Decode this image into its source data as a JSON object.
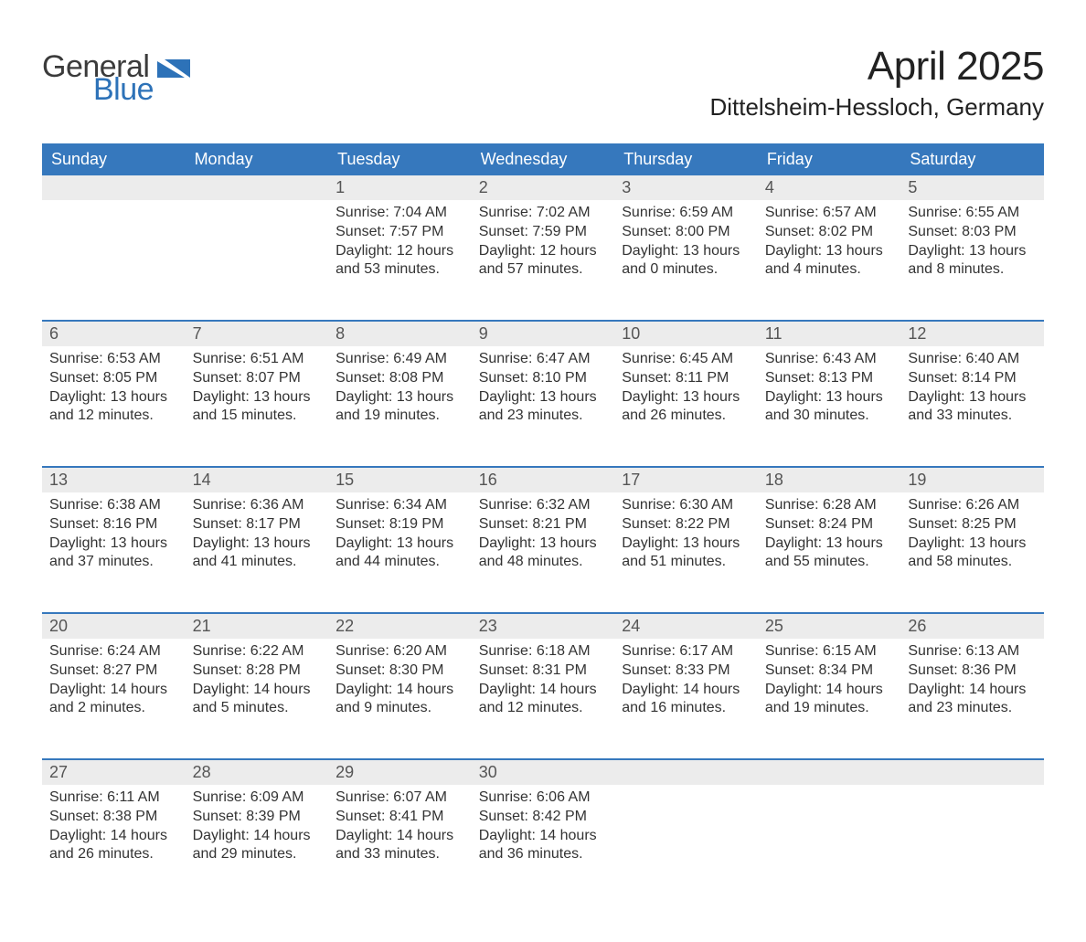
{
  "brand": {
    "word1": "General",
    "word2": "Blue",
    "word1_color": "#3b3b3b",
    "word2_color": "#2d72b8",
    "mark_color": "#2d72b8"
  },
  "title": "April 2025",
  "location": "Dittelsheim-Hessloch, Germany",
  "colors": {
    "header_bg": "#3678bd",
    "header_text": "#ffffff",
    "daynum_bg": "#ececec",
    "row_divider": "#3678bd",
    "body_text": "#333333",
    "page_bg": "#ffffff"
  },
  "day_headers": [
    "Sunday",
    "Monday",
    "Tuesday",
    "Wednesday",
    "Thursday",
    "Friday",
    "Saturday"
  ],
  "weeks": [
    [
      {
        "num": "",
        "lines": []
      },
      {
        "num": "",
        "lines": []
      },
      {
        "num": "1",
        "lines": [
          "Sunrise: 7:04 AM",
          "Sunset: 7:57 PM",
          "Daylight: 12 hours",
          "and 53 minutes."
        ]
      },
      {
        "num": "2",
        "lines": [
          "Sunrise: 7:02 AM",
          "Sunset: 7:59 PM",
          "Daylight: 12 hours",
          "and 57 minutes."
        ]
      },
      {
        "num": "3",
        "lines": [
          "Sunrise: 6:59 AM",
          "Sunset: 8:00 PM",
          "Daylight: 13 hours",
          "and 0 minutes."
        ]
      },
      {
        "num": "4",
        "lines": [
          "Sunrise: 6:57 AM",
          "Sunset: 8:02 PM",
          "Daylight: 13 hours",
          "and 4 minutes."
        ]
      },
      {
        "num": "5",
        "lines": [
          "Sunrise: 6:55 AM",
          "Sunset: 8:03 PM",
          "Daylight: 13 hours",
          "and 8 minutes."
        ]
      }
    ],
    [
      {
        "num": "6",
        "lines": [
          "Sunrise: 6:53 AM",
          "Sunset: 8:05 PM",
          "Daylight: 13 hours",
          "and 12 minutes."
        ]
      },
      {
        "num": "7",
        "lines": [
          "Sunrise: 6:51 AM",
          "Sunset: 8:07 PM",
          "Daylight: 13 hours",
          "and 15 minutes."
        ]
      },
      {
        "num": "8",
        "lines": [
          "Sunrise: 6:49 AM",
          "Sunset: 8:08 PM",
          "Daylight: 13 hours",
          "and 19 minutes."
        ]
      },
      {
        "num": "9",
        "lines": [
          "Sunrise: 6:47 AM",
          "Sunset: 8:10 PM",
          "Daylight: 13 hours",
          "and 23 minutes."
        ]
      },
      {
        "num": "10",
        "lines": [
          "Sunrise: 6:45 AM",
          "Sunset: 8:11 PM",
          "Daylight: 13 hours",
          "and 26 minutes."
        ]
      },
      {
        "num": "11",
        "lines": [
          "Sunrise: 6:43 AM",
          "Sunset: 8:13 PM",
          "Daylight: 13 hours",
          "and 30 minutes."
        ]
      },
      {
        "num": "12",
        "lines": [
          "Sunrise: 6:40 AM",
          "Sunset: 8:14 PM",
          "Daylight: 13 hours",
          "and 33 minutes."
        ]
      }
    ],
    [
      {
        "num": "13",
        "lines": [
          "Sunrise: 6:38 AM",
          "Sunset: 8:16 PM",
          "Daylight: 13 hours",
          "and 37 minutes."
        ]
      },
      {
        "num": "14",
        "lines": [
          "Sunrise: 6:36 AM",
          "Sunset: 8:17 PM",
          "Daylight: 13 hours",
          "and 41 minutes."
        ]
      },
      {
        "num": "15",
        "lines": [
          "Sunrise: 6:34 AM",
          "Sunset: 8:19 PM",
          "Daylight: 13 hours",
          "and 44 minutes."
        ]
      },
      {
        "num": "16",
        "lines": [
          "Sunrise: 6:32 AM",
          "Sunset: 8:21 PM",
          "Daylight: 13 hours",
          "and 48 minutes."
        ]
      },
      {
        "num": "17",
        "lines": [
          "Sunrise: 6:30 AM",
          "Sunset: 8:22 PM",
          "Daylight: 13 hours",
          "and 51 minutes."
        ]
      },
      {
        "num": "18",
        "lines": [
          "Sunrise: 6:28 AM",
          "Sunset: 8:24 PM",
          "Daylight: 13 hours",
          "and 55 minutes."
        ]
      },
      {
        "num": "19",
        "lines": [
          "Sunrise: 6:26 AM",
          "Sunset: 8:25 PM",
          "Daylight: 13 hours",
          "and 58 minutes."
        ]
      }
    ],
    [
      {
        "num": "20",
        "lines": [
          "Sunrise: 6:24 AM",
          "Sunset: 8:27 PM",
          "Daylight: 14 hours",
          "and 2 minutes."
        ]
      },
      {
        "num": "21",
        "lines": [
          "Sunrise: 6:22 AM",
          "Sunset: 8:28 PM",
          "Daylight: 14 hours",
          "and 5 minutes."
        ]
      },
      {
        "num": "22",
        "lines": [
          "Sunrise: 6:20 AM",
          "Sunset: 8:30 PM",
          "Daylight: 14 hours",
          "and 9 minutes."
        ]
      },
      {
        "num": "23",
        "lines": [
          "Sunrise: 6:18 AM",
          "Sunset: 8:31 PM",
          "Daylight: 14 hours",
          "and 12 minutes."
        ]
      },
      {
        "num": "24",
        "lines": [
          "Sunrise: 6:17 AM",
          "Sunset: 8:33 PM",
          "Daylight: 14 hours",
          "and 16 minutes."
        ]
      },
      {
        "num": "25",
        "lines": [
          "Sunrise: 6:15 AM",
          "Sunset: 8:34 PM",
          "Daylight: 14 hours",
          "and 19 minutes."
        ]
      },
      {
        "num": "26",
        "lines": [
          "Sunrise: 6:13 AM",
          "Sunset: 8:36 PM",
          "Daylight: 14 hours",
          "and 23 minutes."
        ]
      }
    ],
    [
      {
        "num": "27",
        "lines": [
          "Sunrise: 6:11 AM",
          "Sunset: 8:38 PM",
          "Daylight: 14 hours",
          "and 26 minutes."
        ]
      },
      {
        "num": "28",
        "lines": [
          "Sunrise: 6:09 AM",
          "Sunset: 8:39 PM",
          "Daylight: 14 hours",
          "and 29 minutes."
        ]
      },
      {
        "num": "29",
        "lines": [
          "Sunrise: 6:07 AM",
          "Sunset: 8:41 PM",
          "Daylight: 14 hours",
          "and 33 minutes."
        ]
      },
      {
        "num": "30",
        "lines": [
          "Sunrise: 6:06 AM",
          "Sunset: 8:42 PM",
          "Daylight: 14 hours",
          "and 36 minutes."
        ]
      },
      {
        "num": "",
        "lines": []
      },
      {
        "num": "",
        "lines": []
      },
      {
        "num": "",
        "lines": []
      }
    ]
  ]
}
